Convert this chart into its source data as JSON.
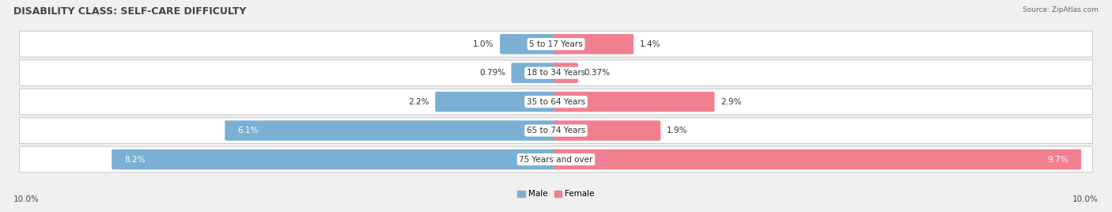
{
  "title": "DISABILITY CLASS: SELF-CARE DIFFICULTY",
  "source": "Source: ZipAtlas.com",
  "categories": [
    "5 to 17 Years",
    "18 to 34 Years",
    "35 to 64 Years",
    "65 to 74 Years",
    "75 Years and over"
  ],
  "male_values": [
    1.0,
    0.79,
    2.2,
    6.1,
    8.2
  ],
  "female_values": [
    1.4,
    0.37,
    2.9,
    1.9,
    9.7
  ],
  "male_labels": [
    "1.0%",
    "0.79%",
    "2.2%",
    "6.1%",
    "8.2%"
  ],
  "female_labels": [
    "1.4%",
    "0.37%",
    "2.9%",
    "1.9%",
    "9.7%"
  ],
  "male_color": "#7bafd4",
  "female_color": "#f08090",
  "bg_color": "#f0f0f0",
  "row_bg_color": "#ffffff",
  "row_border_color": "#cccccc",
  "max_val": 10.0,
  "axis_label_left": "10.0%",
  "axis_label_right": "10.0%",
  "title_fontsize": 9,
  "label_fontsize": 7.5,
  "category_fontsize": 7.5,
  "bar_height": 0.62,
  "fig_width": 14.06,
  "fig_height": 2.68
}
